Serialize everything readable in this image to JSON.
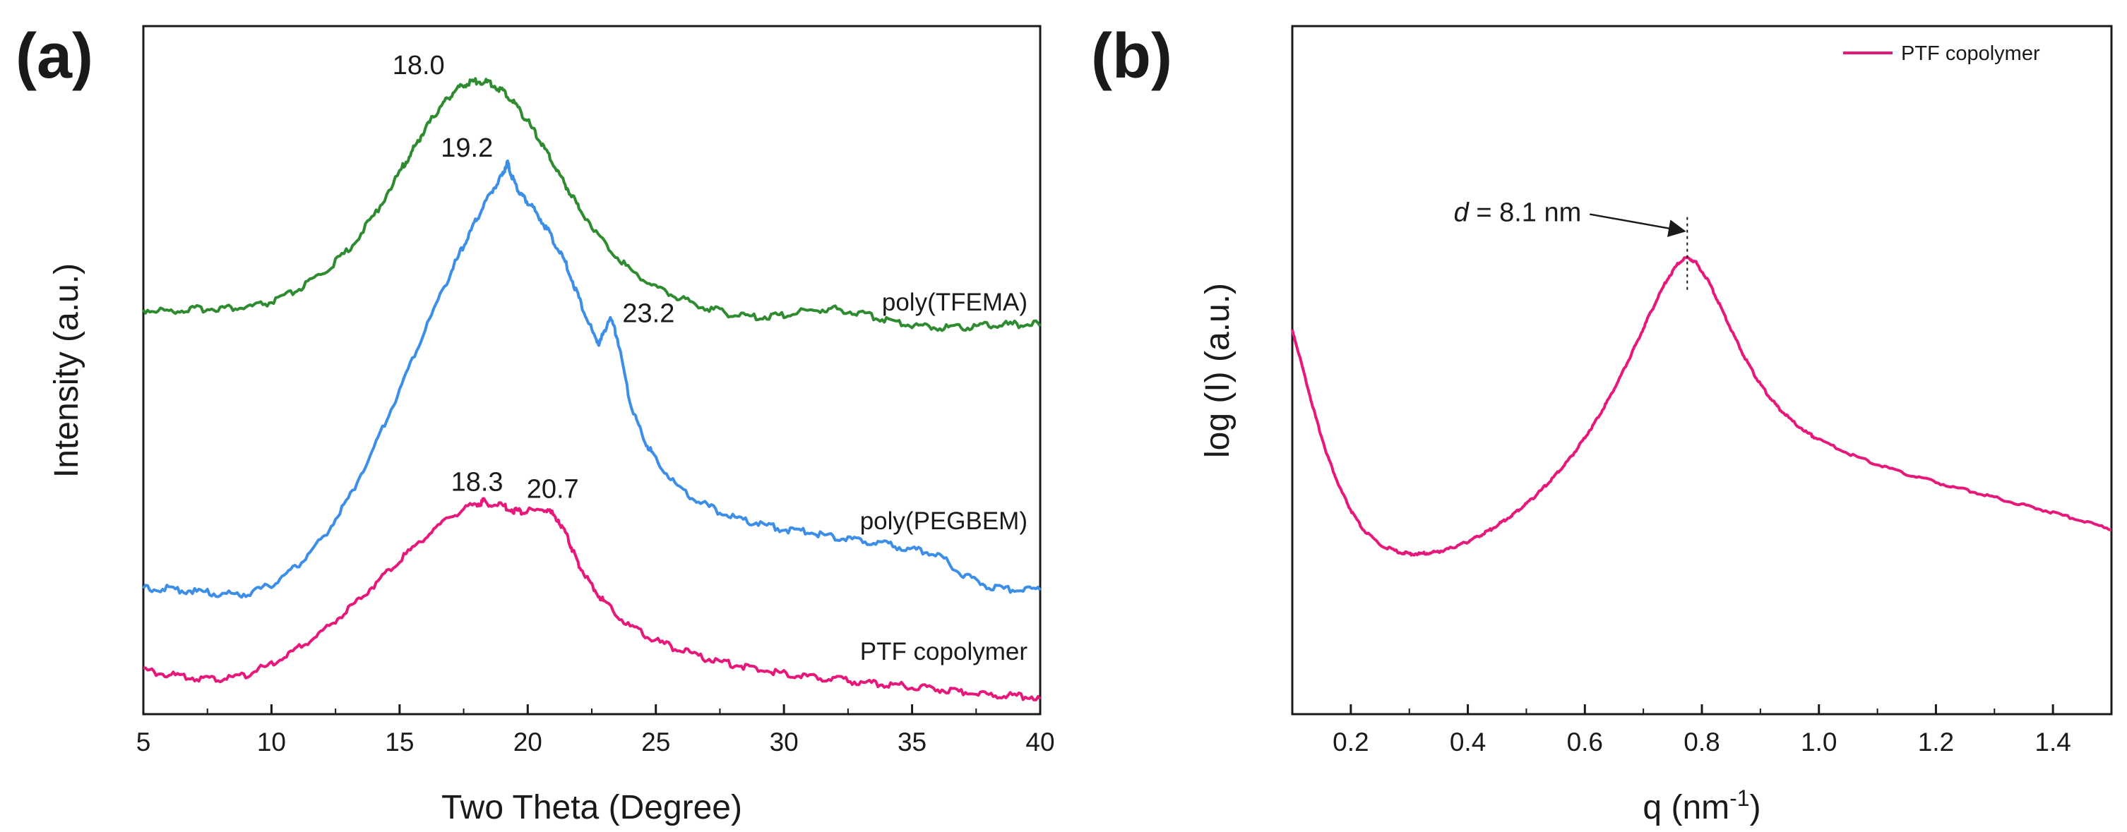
{
  "figure": {
    "panel_a_label": "(a)",
    "panel_b_label": "(b)"
  },
  "chart_data": [
    {
      "type": "line",
      "panel": "a",
      "title": "",
      "xlabel": "Two Theta (Degree)",
      "ylabel": "Intensity (a.u.)",
      "xlim": [
        5,
        40
      ],
      "ylim": [
        0,
        1
      ],
      "xticks": [
        5,
        10,
        15,
        20,
        25,
        30,
        35,
        40
      ],
      "xtick_labels": [
        "5",
        "10",
        "15",
        "20",
        "25",
        "30",
        "35",
        "40"
      ],
      "yticks_shown": false,
      "series": [
        {
          "name": "poly(TFEMA)",
          "color": "#2e8b30",
          "label_text": "poly(TFEMA)",
          "x": [
            5,
            6,
            7,
            8,
            9,
            10,
            11,
            12,
            13,
            14,
            15,
            15.5,
            16,
            16.5,
            17,
            17.5,
            18,
            18.5,
            19,
            19.5,
            20,
            20.5,
            21,
            21.5,
            22,
            23,
            24,
            25,
            26,
            27,
            28,
            29,
            30,
            31,
            32,
            33,
            34,
            35,
            36,
            37,
            38,
            39,
            40
          ],
          "y": [
            0.585,
            0.584,
            0.586,
            0.588,
            0.588,
            0.596,
            0.613,
            0.638,
            0.672,
            0.722,
            0.785,
            0.816,
            0.848,
            0.875,
            0.898,
            0.912,
            0.918,
            0.915,
            0.904,
            0.885,
            0.859,
            0.829,
            0.797,
            0.765,
            0.734,
            0.682,
            0.643,
            0.618,
            0.601,
            0.588,
            0.578,
            0.574,
            0.578,
            0.584,
            0.586,
            0.58,
            0.571,
            0.563,
            0.56,
            0.56,
            0.563,
            0.564,
            0.564
          ]
        },
        {
          "name": "poly(PEGBEM)",
          "color": "#3d8ee6",
          "label_text": "poly(PEGBEM)",
          "x": [
            5,
            6,
            7,
            8,
            9,
            10,
            11,
            12,
            13,
            14,
            15,
            16,
            17,
            17.5,
            18,
            18.5,
            19,
            19.2,
            19.4,
            19.7,
            20,
            20.5,
            21,
            21.5,
            22,
            22.5,
            22.8,
            23.2,
            23.5,
            24,
            24.5,
            25,
            26,
            27,
            28,
            29,
            30,
            31,
            32,
            33,
            34,
            35,
            36,
            37,
            38,
            39,
            40
          ],
          "y": [
            0.18,
            0.18,
            0.176,
            0.172,
            0.172,
            0.185,
            0.213,
            0.253,
            0.31,
            0.385,
            0.468,
            0.557,
            0.64,
            0.678,
            0.716,
            0.753,
            0.78,
            0.8,
            0.778,
            0.754,
            0.742,
            0.718,
            0.686,
            0.651,
            0.602,
            0.555,
            0.535,
            0.575,
            0.545,
            0.45,
            0.4,
            0.368,
            0.322,
            0.3,
            0.283,
            0.275,
            0.266,
            0.262,
            0.255,
            0.25,
            0.244,
            0.237,
            0.23,
            0.2,
            0.183,
            0.178,
            0.18
          ]
        },
        {
          "name": "PTF copolymer",
          "color": "#e6187a",
          "label_text": "PTF copolymer",
          "x": [
            5,
            6,
            7,
            8,
            9,
            10,
            11,
            12,
            13,
            14,
            15,
            16,
            17,
            18,
            18.3,
            19,
            19.5,
            20,
            20.7,
            21.2,
            21.6,
            22,
            22.5,
            23,
            24,
            25,
            26,
            27,
            28,
            29,
            30,
            31,
            32,
            33,
            34,
            35,
            36,
            37,
            38,
            39,
            40
          ],
          "y": [
            0.062,
            0.055,
            0.05,
            0.048,
            0.055,
            0.07,
            0.092,
            0.118,
            0.15,
            0.185,
            0.222,
            0.255,
            0.285,
            0.304,
            0.306,
            0.3,
            0.293,
            0.292,
            0.296,
            0.28,
            0.25,
            0.215,
            0.185,
            0.16,
            0.125,
            0.104,
            0.09,
            0.078,
            0.07,
            0.063,
            0.057,
            0.052,
            0.048,
            0.044,
            0.04,
            0.038,
            0.034,
            0.03,
            0.026,
            0.024,
            0.022
          ]
        }
      ],
      "annotations": [
        {
          "text": "18.0",
          "x": 18.0,
          "y": 0.918
        },
        {
          "text": "19.2",
          "x": 19.2,
          "y": 0.8
        },
        {
          "text": "23.2",
          "x": 23.2,
          "y": 0.575
        },
        {
          "text": "18.3",
          "x": 18.3,
          "y": 0.306
        },
        {
          "text": "20.7",
          "x": 20.7,
          "y": 0.296
        }
      ]
    },
    {
      "type": "line",
      "panel": "b",
      "title": "",
      "xlabel": "q (nm",
      "xlabel_sup": "-1",
      "xlabel_end": ")",
      "ylabel": "log (I) (a.u.)",
      "xlim": [
        0.1,
        1.5
      ],
      "ylim": [
        0,
        1
      ],
      "xticks": [
        0.2,
        0.4,
        0.6,
        0.8,
        1.0,
        1.2,
        1.4
      ],
      "xtick_labels": [
        "0.2",
        "0.4",
        "0.6",
        "0.8",
        "1.0",
        "1.2",
        "1.4"
      ],
      "yticks_shown": false,
      "legend": {
        "position": "top-right",
        "entries": [
          "PTF copolymer"
        ]
      },
      "series": [
        {
          "name": "PTF copolymer",
          "color": "#e6187a",
          "x": [
            0.1,
            0.12,
            0.14,
            0.16,
            0.18,
            0.2,
            0.22,
            0.25,
            0.28,
            0.3,
            0.32,
            0.34,
            0.36,
            0.38,
            0.4,
            0.42,
            0.44,
            0.46,
            0.48,
            0.5,
            0.52,
            0.54,
            0.56,
            0.58,
            0.6,
            0.62,
            0.64,
            0.66,
            0.68,
            0.7,
            0.72,
            0.74,
            0.76,
            0.775,
            0.79,
            0.81,
            0.83,
            0.85,
            0.87,
            0.89,
            0.91,
            0.93,
            0.95,
            0.98,
            1.0,
            1.05,
            1.1,
            1.15,
            1.2,
            1.25,
            1.3,
            1.35,
            1.4,
            1.45,
            1.5
          ],
          "y": [
            0.558,
            0.495,
            0.43,
            0.375,
            0.33,
            0.295,
            0.268,
            0.245,
            0.235,
            0.232,
            0.232,
            0.234,
            0.237,
            0.243,
            0.25,
            0.258,
            0.268,
            0.279,
            0.291,
            0.305,
            0.32,
            0.337,
            0.356,
            0.377,
            0.401,
            0.427,
            0.456,
            0.488,
            0.523,
            0.56,
            0.596,
            0.63,
            0.655,
            0.663,
            0.655,
            0.63,
            0.595,
            0.558,
            0.523,
            0.492,
            0.466,
            0.445,
            0.428,
            0.408,
            0.398,
            0.378,
            0.362,
            0.348,
            0.336,
            0.325,
            0.314,
            0.303,
            0.292,
            0.28,
            0.268
          ]
        }
      ],
      "annotations": [
        {
          "text_italic": "d",
          "text": " = 8.1 nm",
          "x": 0.775,
          "y": 0.663
        }
      ]
    }
  ]
}
